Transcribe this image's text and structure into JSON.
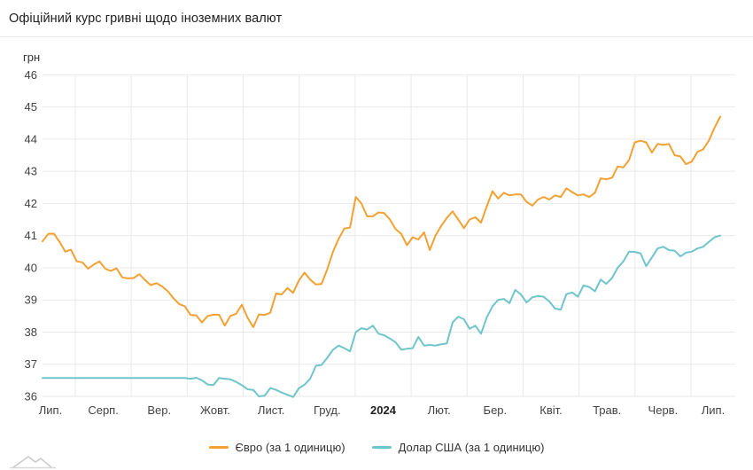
{
  "header": {
    "title": "Офіційний курс гривні щодо іноземних валют"
  },
  "chart_data": {
    "type": "line",
    "title": "Офіційний курс гривні щодо іноземних валют",
    "ylabel": "грн",
    "unit_label": "грн",
    "ylim": [
      36,
      46
    ],
    "y_ticks": [
      46,
      45,
      44,
      43,
      42,
      41,
      40,
      39,
      38,
      37,
      36
    ],
    "x_labels": [
      "Лип.",
      "Серп.",
      "Вер.",
      "Жовт.",
      "Лист.",
      "Груд.",
      "2024",
      "Лют.",
      "Бер.",
      "Квіт.",
      "Трав.",
      "Черв.",
      "Лип."
    ],
    "bold_x_label": "2024",
    "grid": true,
    "legend_position": "bottom",
    "grid_color": "#e9e9e9",
    "tick_color": "#424242",
    "series": [
      {
        "name": "Євро (за 1 одиницю)",
        "color": "#f2a132",
        "values": [
          40.82,
          41.05,
          41.06,
          40.8,
          40.5,
          40.56,
          40.2,
          40.17,
          39.97,
          40.1,
          40.2,
          39.97,
          39.9,
          39.98,
          39.7,
          39.67,
          39.68,
          39.8,
          39.62,
          39.46,
          39.52,
          39.42,
          39.27,
          39.05,
          38.87,
          38.8,
          38.53,
          38.52,
          38.3,
          38.5,
          38.54,
          38.54,
          38.2,
          38.5,
          38.57,
          38.85,
          38.45,
          38.15,
          38.55,
          38.53,
          38.6,
          39.2,
          39.17,
          39.37,
          39.22,
          39.6,
          39.85,
          39.63,
          39.48,
          39.5,
          39.95,
          40.5,
          40.9,
          41.22,
          41.25,
          42.2,
          42.0,
          41.6,
          41.6,
          41.72,
          41.7,
          41.5,
          41.2,
          41.05,
          40.7,
          40.95,
          40.88,
          41.1,
          40.55,
          41.0,
          41.3,
          41.55,
          41.75,
          41.5,
          41.23,
          41.5,
          41.57,
          41.4,
          41.9,
          42.38,
          42.15,
          42.33,
          42.25,
          42.28,
          42.28,
          42.05,
          41.93,
          42.12,
          42.2,
          42.12,
          42.25,
          42.2,
          42.47,
          42.35,
          42.25,
          42.28,
          42.2,
          42.33,
          42.78,
          42.75,
          42.8,
          43.15,
          43.12,
          43.35,
          43.9,
          43.95,
          43.9,
          43.58,
          43.85,
          43.82,
          43.85,
          43.5,
          43.46,
          43.22,
          43.3,
          43.6,
          43.68,
          43.95,
          44.35,
          44.7
        ]
      },
      {
        "name": "Долар США (за 1 одиницю)",
        "color": "#6fc5cb",
        "values": [
          36.57,
          36.57,
          36.57,
          36.57,
          36.57,
          36.57,
          36.57,
          36.57,
          36.57,
          36.57,
          36.57,
          36.57,
          36.57,
          36.57,
          36.57,
          36.57,
          36.57,
          36.57,
          36.57,
          36.57,
          36.57,
          36.57,
          36.57,
          36.57,
          36.57,
          36.57,
          36.55,
          36.58,
          36.5,
          36.37,
          36.35,
          36.57,
          36.55,
          36.53,
          36.45,
          36.35,
          36.22,
          36.2,
          36.0,
          36.02,
          36.26,
          36.2,
          36.12,
          36.05,
          35.98,
          36.25,
          36.36,
          36.55,
          36.95,
          36.98,
          37.2,
          37.45,
          37.58,
          37.5,
          37.4,
          38.0,
          38.12,
          38.08,
          38.2,
          37.95,
          37.9,
          37.8,
          37.68,
          37.45,
          37.48,
          37.5,
          37.85,
          37.58,
          37.6,
          37.58,
          37.62,
          37.65,
          38.3,
          38.48,
          38.4,
          38.1,
          38.2,
          37.95,
          38.45,
          38.8,
          39.0,
          39.03,
          38.9,
          39.31,
          39.17,
          38.92,
          39.08,
          39.12,
          39.1,
          38.95,
          38.73,
          38.7,
          39.18,
          39.23,
          39.1,
          39.45,
          39.4,
          39.27,
          39.63,
          39.5,
          39.68,
          40.0,
          40.2,
          40.5,
          40.49,
          40.45,
          40.05,
          40.32,
          40.6,
          40.65,
          40.55,
          40.53,
          40.35,
          40.47,
          40.5,
          40.6,
          40.65,
          40.8,
          40.95,
          41.0
        ]
      }
    ]
  }
}
